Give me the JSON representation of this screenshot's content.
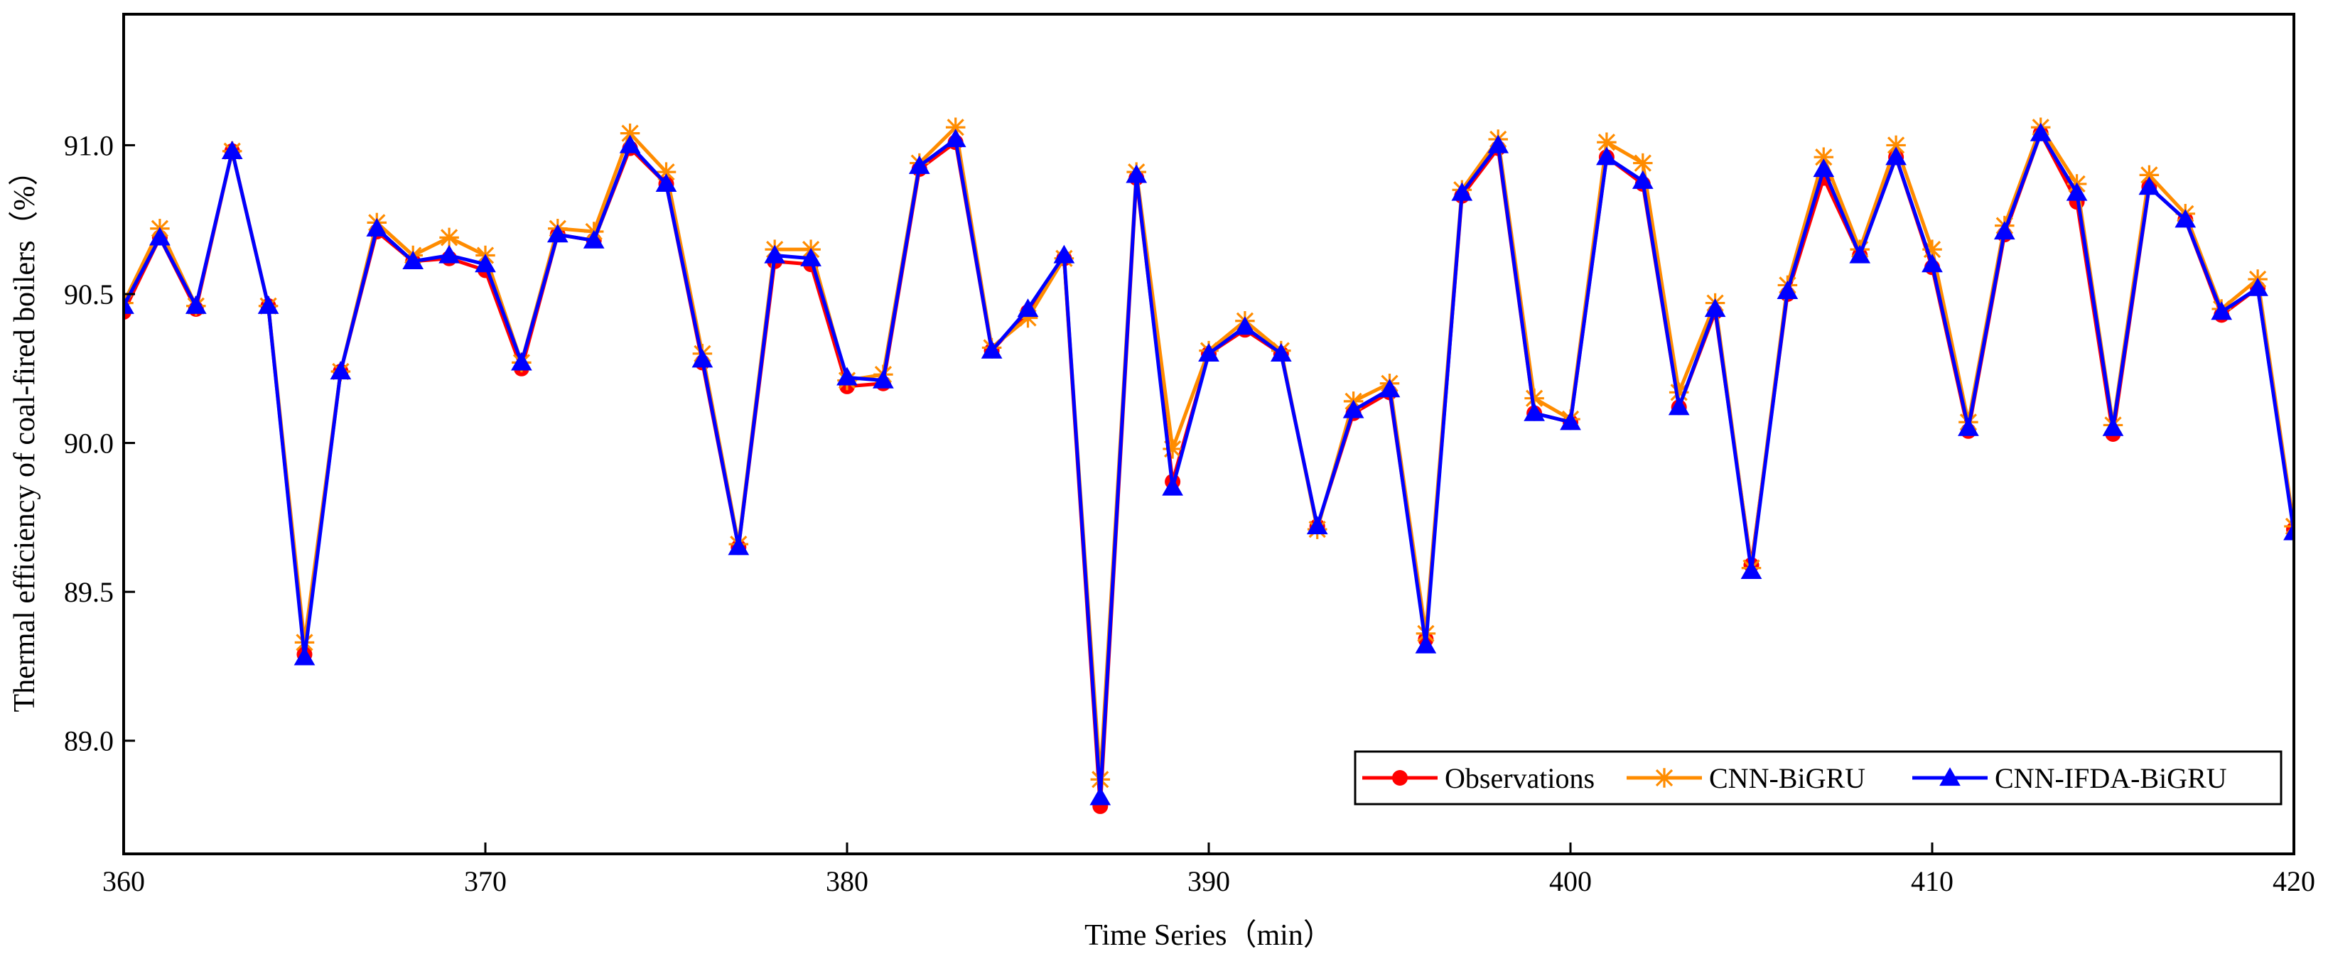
{
  "chart_data": {
    "type": "line",
    "title": "",
    "xlabel": "Time Series（min）",
    "ylabel": "Thermal efficiency of coal-fired boilers（%）",
    "xlim": [
      360,
      420
    ],
    "ylim": [
      88.62,
      91.44
    ],
    "xticks": [
      360,
      370,
      380,
      390,
      400,
      410,
      420
    ],
    "yticks": [
      89.0,
      89.5,
      90.0,
      90.5,
      91.0
    ],
    "xtick_labels": [
      "360",
      "370",
      "380",
      "390",
      "400",
      "410",
      "420"
    ],
    "ytick_labels": [
      "89.0",
      "89.5",
      "90.0",
      "90.5",
      "91.0"
    ],
    "grid": false,
    "legend_position": "bottom-right",
    "x": [
      360,
      361,
      362,
      363,
      364,
      365,
      366,
      367,
      368,
      369,
      370,
      371,
      372,
      373,
      374,
      375,
      376,
      377,
      378,
      379,
      380,
      381,
      382,
      383,
      384,
      385,
      386,
      387,
      388,
      389,
      390,
      391,
      392,
      393,
      394,
      395,
      396,
      397,
      398,
      399,
      400,
      401,
      402,
      403,
      404,
      405,
      406,
      407,
      408,
      409,
      410,
      411,
      412,
      413,
      414,
      415,
      416,
      417,
      418,
      419,
      420
    ],
    "series": [
      {
        "name": "Observations",
        "color": "#ff0000",
        "marker": "circle",
        "values": [
          90.44,
          90.69,
          90.45,
          90.98,
          90.46,
          89.29,
          90.24,
          90.71,
          90.61,
          90.62,
          90.58,
          90.25,
          90.7,
          90.68,
          90.99,
          90.87,
          90.27,
          89.65,
          90.61,
          90.6,
          90.19,
          90.2,
          90.92,
          91.01,
          90.31,
          90.44,
          90.62,
          88.78,
          90.89,
          89.87,
          90.3,
          90.38,
          90.3,
          89.72,
          90.1,
          90.17,
          89.34,
          90.83,
          90.99,
          90.1,
          90.07,
          90.96,
          90.87,
          90.12,
          90.44,
          89.59,
          90.5,
          90.89,
          90.63,
          90.96,
          90.59,
          90.04,
          90.7,
          91.04,
          90.81,
          90.03,
          90.86,
          90.75,
          90.43,
          90.52,
          89.71
        ]
      },
      {
        "name": "CNN-BiGRU",
        "color": "#ff8c00",
        "marker": "star",
        "values": [
          90.47,
          90.72,
          90.46,
          90.98,
          90.46,
          89.33,
          90.24,
          90.74,
          90.63,
          90.69,
          90.63,
          90.27,
          90.72,
          90.71,
          91.04,
          90.91,
          90.3,
          89.66,
          90.65,
          90.65,
          90.21,
          90.23,
          90.94,
          91.06,
          90.32,
          90.42,
          90.62,
          88.87,
          90.91,
          89.98,
          90.31,
          90.41,
          90.31,
          89.71,
          90.14,
          90.2,
          89.36,
          90.85,
          91.02,
          90.15,
          90.08,
          91.01,
          90.94,
          90.17,
          90.47,
          89.58,
          90.53,
          90.96,
          90.65,
          91.0,
          90.65,
          90.07,
          90.73,
          91.06,
          90.87,
          90.06,
          90.9,
          90.77,
          90.45,
          90.55,
          89.72
        ]
      },
      {
        "name": "CNN-IFDA-BiGRU",
        "color": "#0000ff",
        "marker": "triangle",
        "values": [
          90.46,
          90.69,
          90.46,
          90.98,
          90.46,
          89.28,
          90.24,
          90.72,
          90.61,
          90.63,
          90.6,
          90.27,
          90.7,
          90.68,
          91.0,
          90.87,
          90.28,
          89.65,
          90.63,
          90.62,
          90.22,
          90.21,
          90.93,
          91.02,
          90.31,
          90.45,
          90.63,
          88.81,
          90.9,
          89.85,
          90.3,
          90.39,
          90.3,
          89.72,
          90.11,
          90.18,
          89.32,
          90.84,
          91.0,
          90.1,
          90.07,
          90.96,
          90.88,
          90.12,
          90.45,
          89.57,
          90.51,
          90.92,
          90.63,
          90.96,
          90.6,
          90.05,
          90.71,
          91.04,
          90.84,
          90.05,
          90.86,
          90.75,
          90.44,
          90.52,
          89.7
        ]
      }
    ]
  }
}
